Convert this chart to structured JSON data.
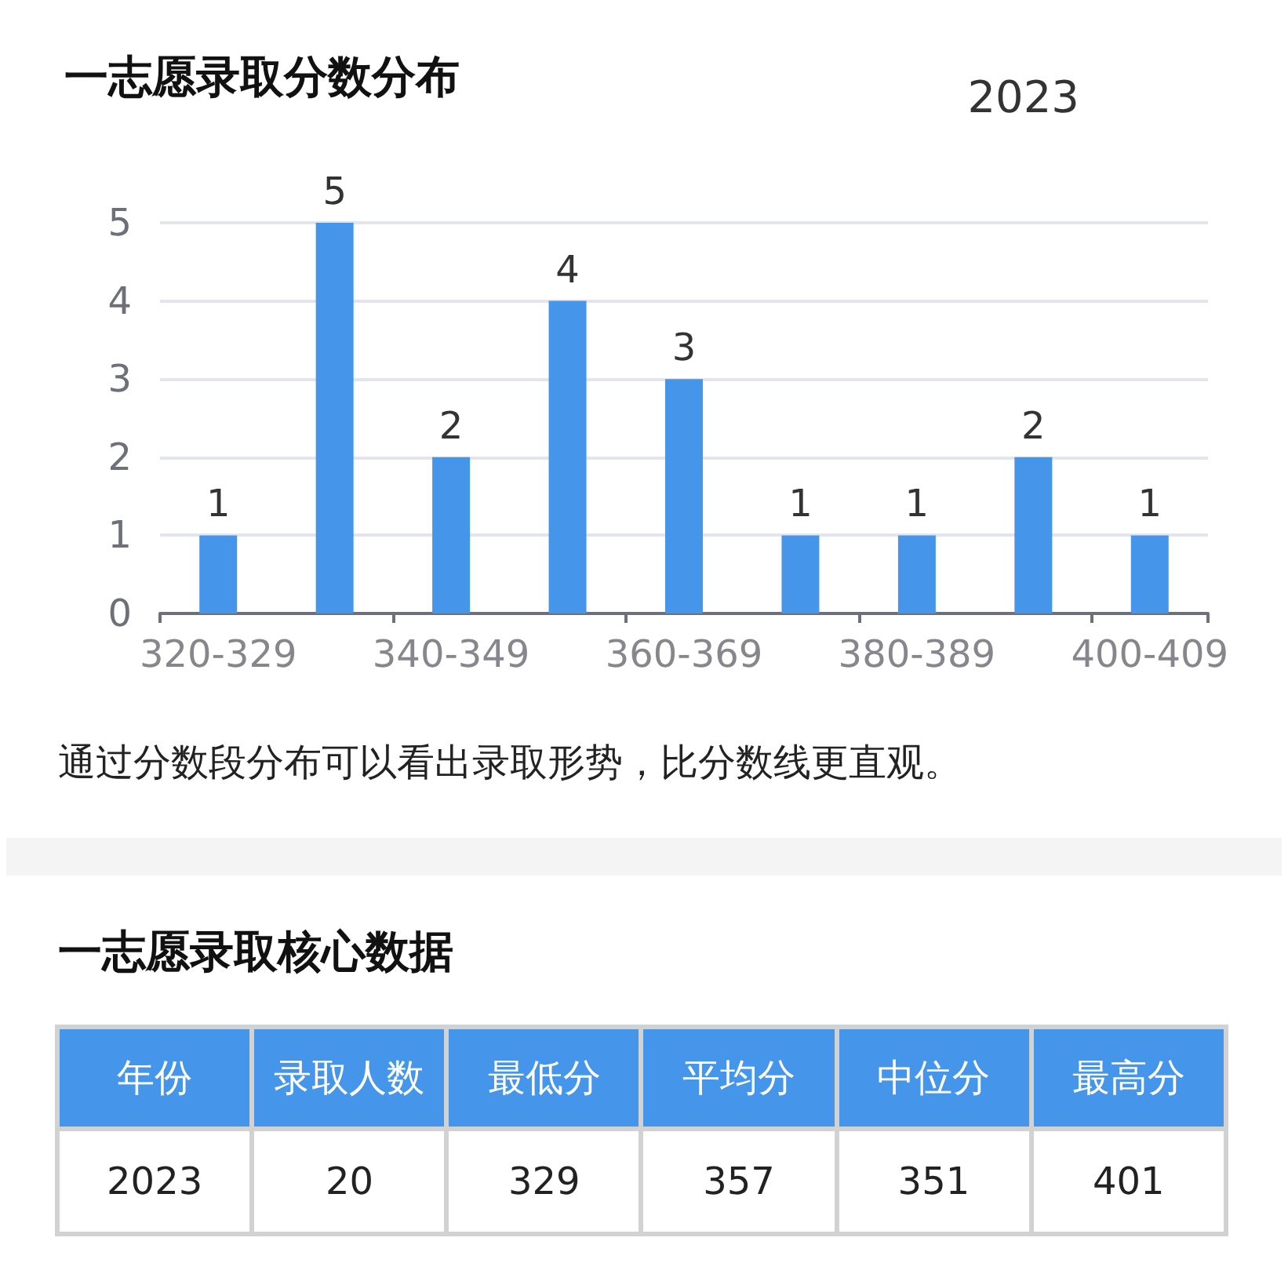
{
  "chart_data": [
    {
      "type": "bar",
      "title": "一志愿录取分数分布",
      "subtitle": "2023",
      "categories": [
        "320-329",
        null,
        "340-349",
        null,
        "360-369",
        null,
        "380-389",
        null,
        "400-409"
      ],
      "values": [
        1,
        5,
        2,
        4,
        3,
        1,
        1,
        2,
        1
      ],
      "color": "#4596ea",
      "ylim": [
        0,
        5
      ],
      "yticks": [
        0,
        1,
        2,
        3,
        4,
        5
      ],
      "grid": "y",
      "data_labels": true,
      "annotations": [
        "通过分数段分布可以看出录取形势，比分数线更直观。"
      ]
    },
    {
      "type": "other",
      "title": "一志愿录取核心数据",
      "categories": [
        "年份",
        "录取人数",
        "最低分",
        "平均分",
        "中位分",
        "最高分"
      ],
      "values": [
        2023,
        20,
        329,
        357,
        351,
        401
      ],
      "data_labels": true
    }
  ]
}
